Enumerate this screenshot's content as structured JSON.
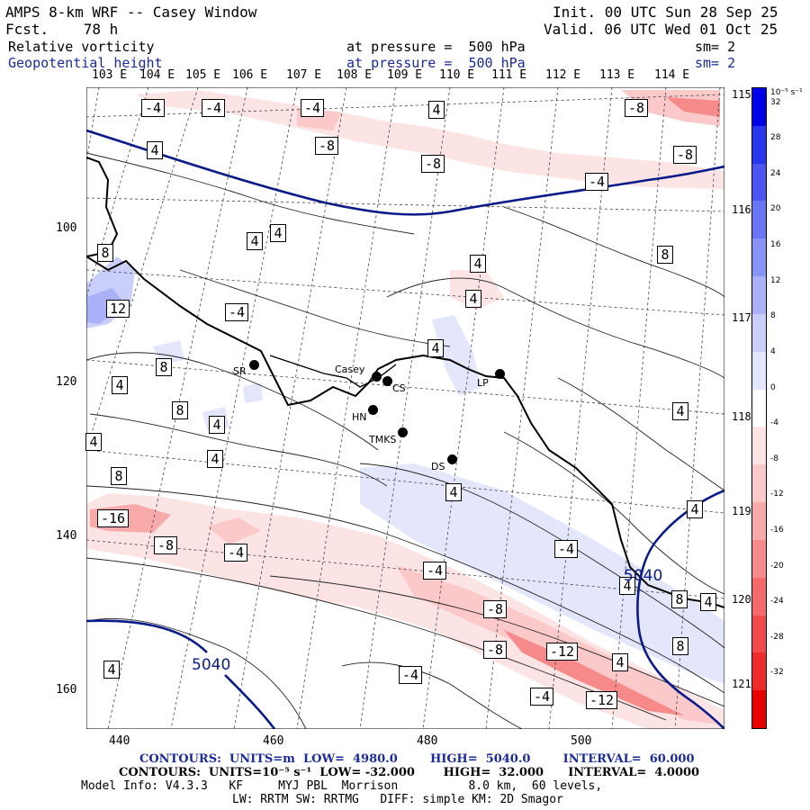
{
  "header": {
    "model": "AMPS 8-km WRF -- Casey Window",
    "forecast": "Fcst.    78 h",
    "init": "Init. 00 UTC Sun 28 Sep 25",
    "valid": "Valid. 06 UTC Wed 01 Oct 25",
    "field1": {
      "name": "Relative vorticity",
      "level": "at pressure =  500 hPa",
      "smooth": "sm= 2"
    },
    "field2": {
      "name": "Geopotential height",
      "level": "at pressure =  500 hPa",
      "smooth": "sm= 2"
    }
  },
  "lon_labels": [
    "103 E",
    "104 E",
    "105 E",
    "106 E",
    "107 E",
    "108 E",
    "109 E",
    "110 E",
    "111 E",
    "112 E",
    "113 E",
    "114 E"
  ],
  "lat_labels": [
    "115 E",
    "116 E",
    "117 E",
    "118 E",
    "119 E",
    "120 E",
    "121 E"
  ],
  "y_ticks": [
    "100",
    "120",
    "140",
    "160"
  ],
  "x_ticks": [
    "440",
    "460",
    "480",
    "500"
  ],
  "colorbar": {
    "unit": "10⁻⁵ s⁻¹",
    "levels": [
      "32",
      "28",
      "24",
      "20",
      "16",
      "12",
      "8",
      "4",
      "0",
      "-4",
      "-8",
      "-12",
      "-16",
      "-20",
      "-24",
      "-28",
      "-32"
    ],
    "colors": [
      "#0000e6",
      "#2a35ee",
      "#4a55f2",
      "#6a75f4",
      "#8a93f6",
      "#aab1f8",
      "#c9cefa",
      "#e4e7fc",
      "#ffffff",
      "#fde4e4",
      "#fbc9c9",
      "#f8aaaa",
      "#f68a8a",
      "#f46a6a",
      "#f24a4a",
      "#ee2a2a",
      "#e60000"
    ]
  },
  "stations": [
    {
      "name": "SR"
    },
    {
      "name": "Casey"
    },
    {
      "name": "CS"
    },
    {
      "name": "HN"
    },
    {
      "name": "TMKS"
    },
    {
      "name": "LP"
    },
    {
      "name": "DS"
    }
  ],
  "height_labels": [
    "5040",
    "5040"
  ],
  "contour_labels": [
    "-4",
    "-4",
    "-4",
    "4",
    "-8",
    "4",
    "-8",
    "-8",
    "-4",
    "-8",
    "4",
    "4",
    "4",
    "8",
    "8",
    "4",
    "4",
    "12",
    "-4",
    "4",
    "8",
    "8",
    "4",
    "4",
    "4",
    "8",
    "4",
    "-4",
    "-16",
    "-8",
    "-4",
    "8",
    "4",
    "-4",
    "-8",
    "-8",
    "-12",
    "4",
    "4",
    "-4",
    "-4",
    "-12",
    "8",
    "4",
    "4",
    "4"
  ],
  "footer": {
    "contours1": "CONTOURS:  UNITS=m  LOW=  4980.0        HIGH=  5040.0        INTERVAL=  60.000",
    "contours2": "CONTOURS:  UNITS=10⁻⁵ s⁻¹  LOW= -32.000       HIGH=  32.000      INTERVAL=  4.0000",
    "model_info": "Model Info: V4.3.3   KF     MYJ PBL  Morrison          8.0 km,  60 levels,",
    "physics": "LW: RRTM SW: RRTMG   DIFF: simple KM: 2D Smagor"
  }
}
